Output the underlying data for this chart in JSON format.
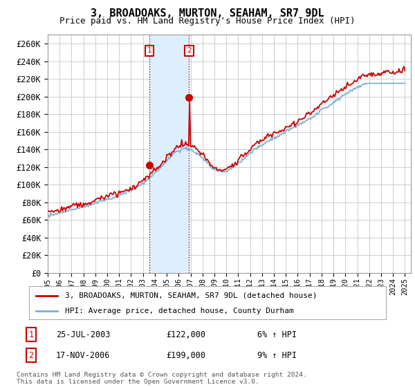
{
  "title": "3, BROADOAKS, MURTON, SEAHAM, SR7 9DL",
  "subtitle": "Price paid vs. HM Land Registry's House Price Index (HPI)",
  "yticks": [
    0,
    20000,
    40000,
    60000,
    80000,
    100000,
    120000,
    140000,
    160000,
    180000,
    200000,
    220000,
    240000,
    260000
  ],
  "ytick_labels": [
    "£0",
    "£20K",
    "£40K",
    "£60K",
    "£80K",
    "£100K",
    "£120K",
    "£140K",
    "£160K",
    "£180K",
    "£200K",
    "£220K",
    "£240K",
    "£260K"
  ],
  "xlim_start": 1995.0,
  "xlim_end": 2025.5,
  "ylim_min": 0,
  "ylim_max": 270000,
  "sale1_x": 2003.56,
  "sale1_y": 122000,
  "sale1_label": "1",
  "sale1_date": "25-JUL-2003",
  "sale1_price": "£122,000",
  "sale1_hpi": "6% ↑ HPI",
  "sale2_x": 2006.88,
  "sale2_y": 199000,
  "sale2_label": "2",
  "sale2_date": "17-NOV-2006",
  "sale2_price": "£199,000",
  "sale2_hpi": "9% ↑ HPI",
  "line_color_red": "#cc0000",
  "line_color_blue": "#7ab0d4",
  "shade_color": "#ddeeff",
  "vline_color": "#cc0000",
  "background_color": "#ffffff",
  "grid_color": "#cccccc",
  "legend1_label": "3, BROADOAKS, MURTON, SEAHAM, SR7 9DL (detached house)",
  "legend2_label": "HPI: Average price, detached house, County Durham",
  "footnote": "Contains HM Land Registry data © Crown copyright and database right 2024.\nThis data is licensed under the Open Government Licence v3.0."
}
